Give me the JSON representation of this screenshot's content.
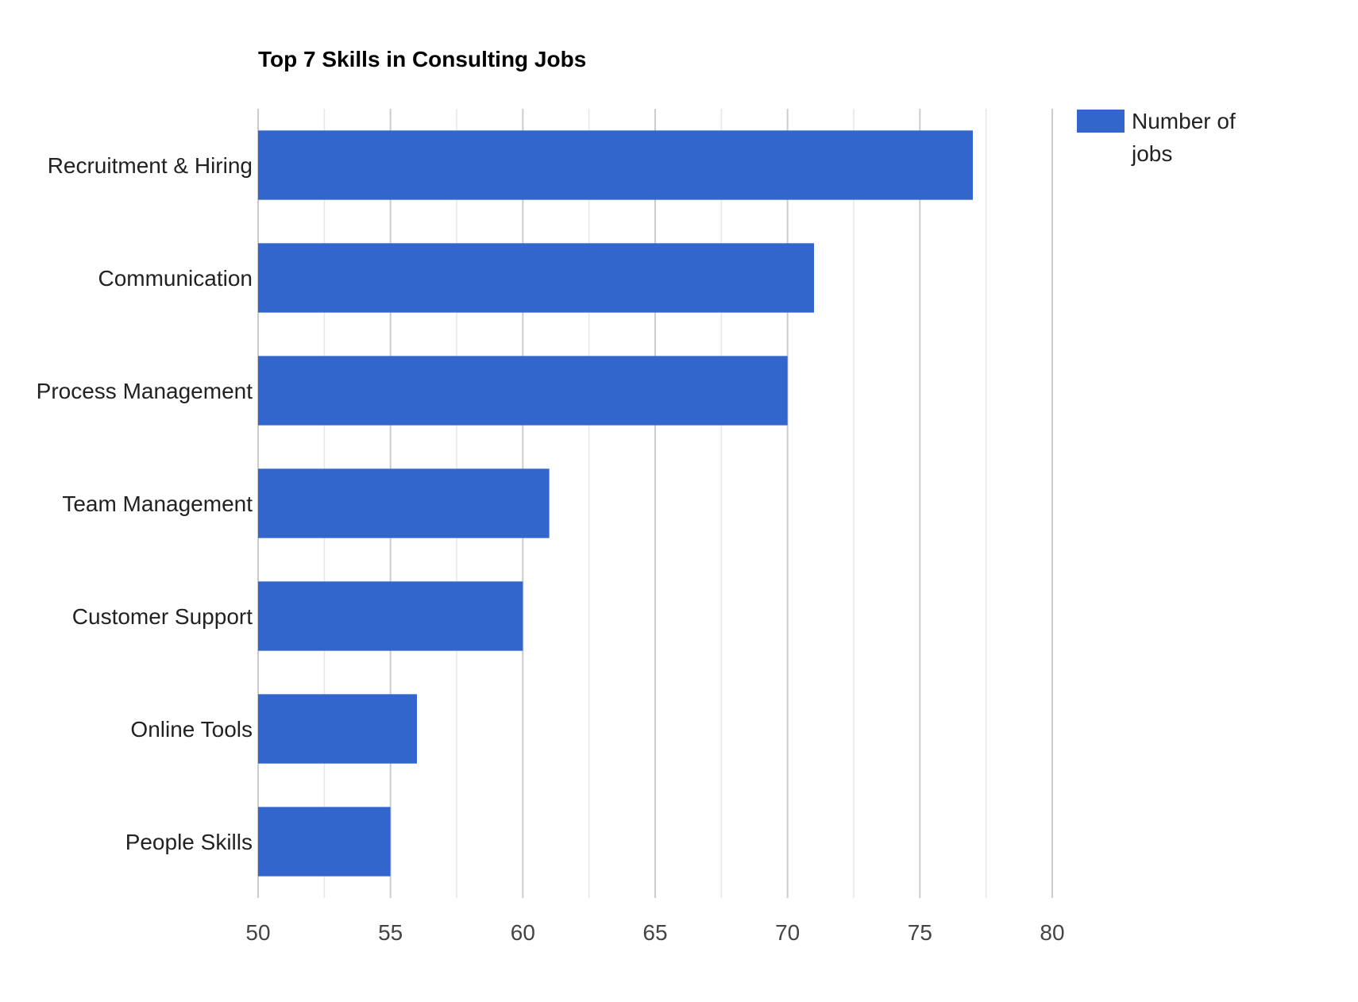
{
  "chart_data": {
    "type": "bar",
    "orientation": "horizontal",
    "title": "Top 7 Skills in Consulting Jobs",
    "xlabel": "",
    "ylabel": "",
    "categories": [
      "Recruitment & Hiring",
      "Communication",
      "Process Management",
      "Team Management",
      "Customer Support",
      "Online Tools",
      "People Skills"
    ],
    "series": [
      {
        "name": "Number of jobs",
        "color": "#3366cc",
        "values": [
          77,
          71,
          70,
          61,
          60,
          56,
          55
        ]
      }
    ],
    "xlim": [
      50,
      80
    ],
    "xticks": [
      50,
      55,
      60,
      65,
      70,
      75,
      80
    ],
    "grid": true,
    "legend": {
      "position": "right",
      "lines": [
        "Number of",
        "jobs"
      ]
    }
  }
}
